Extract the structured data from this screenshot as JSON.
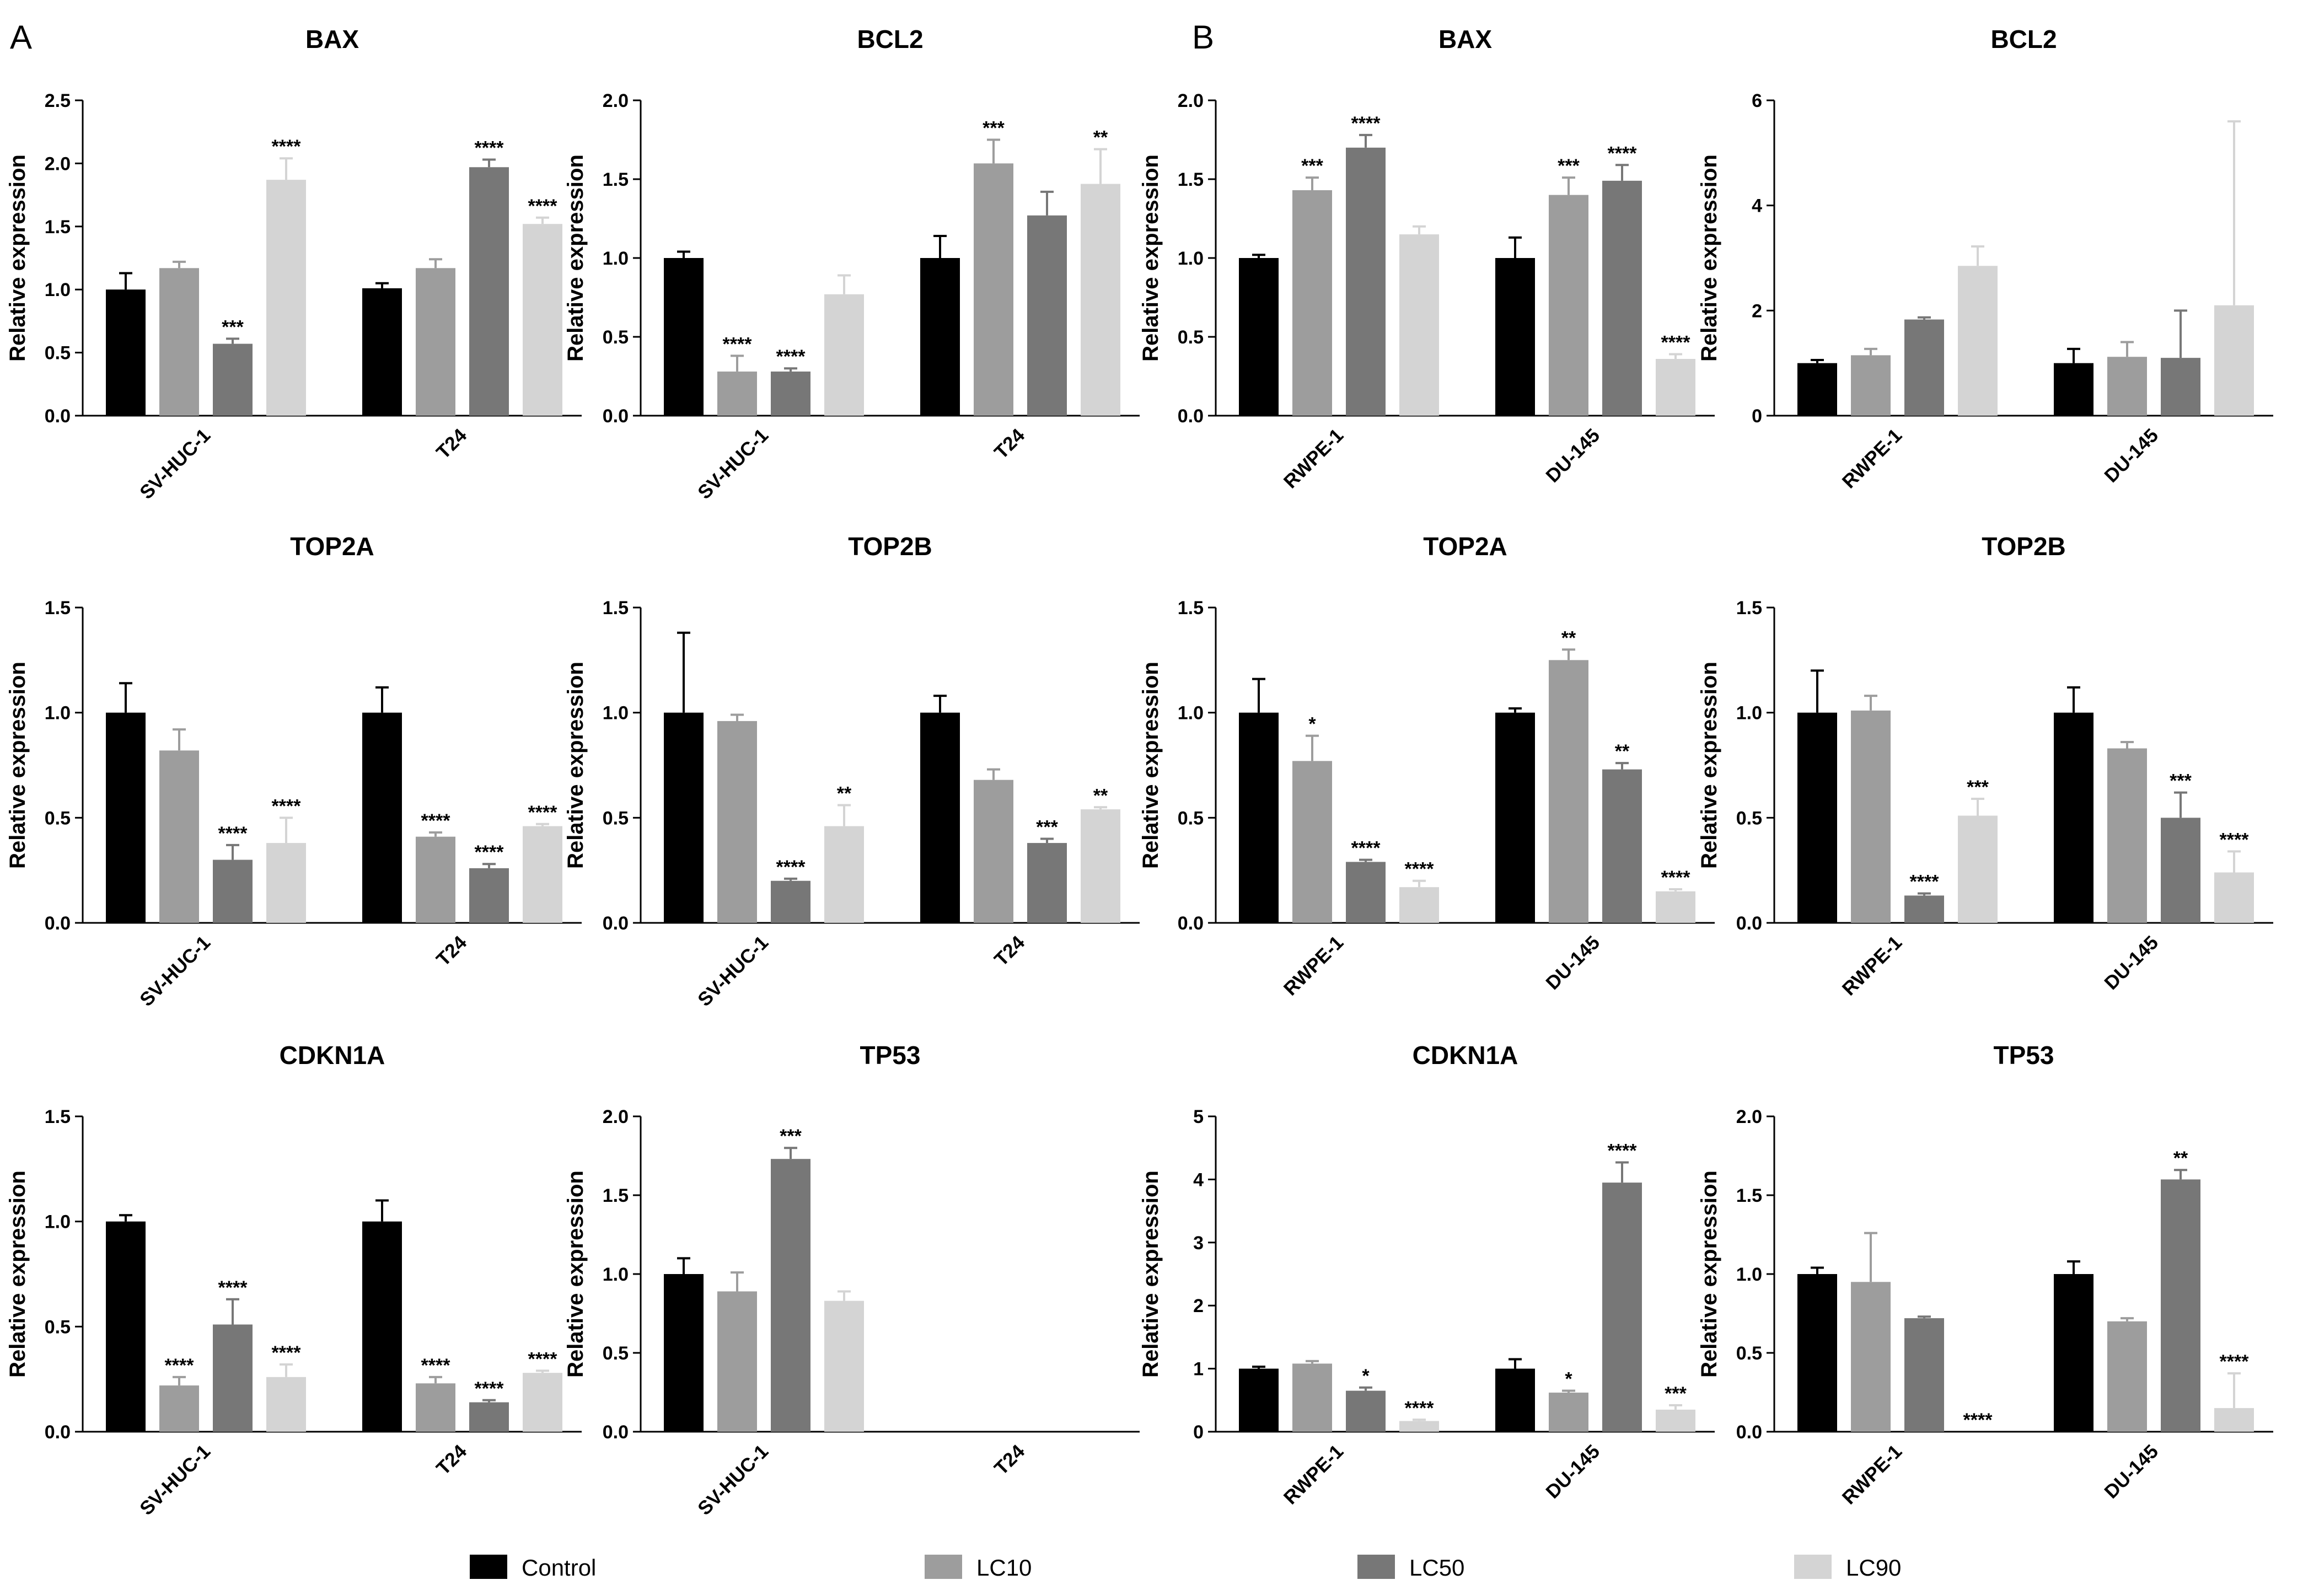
{
  "panel_labels": [
    "A",
    "B"
  ],
  "legend": [
    {
      "name": "Control",
      "color": "#000000"
    },
    {
      "name": "LC10",
      "color": "#9d9d9d"
    },
    {
      "name": "LC50",
      "color": "#777777"
    },
    {
      "name": "LC90",
      "color": "#d4d4d4"
    }
  ],
  "chart_data": [
    {
      "type": "bar",
      "panel": "A",
      "title": "BAX",
      "ylabel": "Relative expression",
      "ylim": [
        0,
        2.5
      ],
      "yticks": [
        "0.0",
        "0.5",
        "1.0",
        "1.5",
        "2.0",
        "2.5"
      ],
      "categories": [
        "SV-HUC-1",
        "T24"
      ],
      "series": [
        {
          "name": "Control",
          "values": [
            1.0,
            1.01
          ],
          "errors": [
            0.13,
            0.04
          ],
          "sig": [
            "",
            ""
          ]
        },
        {
          "name": "LC10",
          "values": [
            1.17,
            1.17
          ],
          "errors": [
            0.05,
            0.07
          ],
          "sig": [
            "",
            ""
          ]
        },
        {
          "name": "LC50",
          "values": [
            0.57,
            1.97
          ],
          "errors": [
            0.04,
            0.06
          ],
          "sig": [
            "***",
            "****"
          ]
        },
        {
          "name": "LC90",
          "values": [
            1.87,
            1.52
          ],
          "errors": [
            0.17,
            0.05
          ],
          "sig": [
            "****",
            "****"
          ]
        }
      ]
    },
    {
      "type": "bar",
      "panel": "A",
      "title": "BCL2",
      "ylabel": "Relative expression",
      "ylim": [
        0,
        2.0
      ],
      "yticks": [
        "0.0",
        "0.5",
        "1.0",
        "1.5",
        "2.0"
      ],
      "categories": [
        "SV-HUC-1",
        "T24"
      ],
      "series": [
        {
          "name": "Control",
          "values": [
            1.0,
            1.0
          ],
          "errors": [
            0.04,
            0.14
          ],
          "sig": [
            "",
            ""
          ]
        },
        {
          "name": "LC10",
          "values": [
            0.28,
            1.6
          ],
          "errors": [
            0.1,
            0.15
          ],
          "sig": [
            "****",
            "***"
          ]
        },
        {
          "name": "LC50",
          "values": [
            0.28,
            1.27
          ],
          "errors": [
            0.02,
            0.15
          ],
          "sig": [
            "****",
            ""
          ]
        },
        {
          "name": "LC90",
          "values": [
            0.77,
            1.47
          ],
          "errors": [
            0.12,
            0.22
          ],
          "sig": [
            "",
            "**"
          ]
        }
      ]
    },
    {
      "type": "bar",
      "panel": "B",
      "title": "BAX",
      "ylabel": "Relative expression",
      "ylim": [
        0,
        2.0
      ],
      "yticks": [
        "0.0",
        "0.5",
        "1.0",
        "1.5",
        "2.0"
      ],
      "categories": [
        "RWPE-1",
        "DU-145"
      ],
      "series": [
        {
          "name": "Control",
          "values": [
            1.0,
            1.0
          ],
          "errors": [
            0.02,
            0.13
          ],
          "sig": [
            "",
            ""
          ]
        },
        {
          "name": "LC10",
          "values": [
            1.43,
            1.4
          ],
          "errors": [
            0.08,
            0.11
          ],
          "sig": [
            "***",
            "***"
          ]
        },
        {
          "name": "LC50",
          "values": [
            1.7,
            1.49
          ],
          "errors": [
            0.08,
            0.1
          ],
          "sig": [
            "****",
            "****"
          ]
        },
        {
          "name": "LC90",
          "values": [
            1.15,
            0.36
          ],
          "errors": [
            0.05,
            0.03
          ],
          "sig": [
            "",
            "****"
          ]
        }
      ]
    },
    {
      "type": "bar",
      "panel": "B",
      "title": "BCL2",
      "ylabel": "Relative expression",
      "ylim": [
        0,
        6
      ],
      "yticks": [
        "0",
        "2",
        "4",
        "6"
      ],
      "categories": [
        "RWPE-1",
        "DU-145"
      ],
      "series": [
        {
          "name": "Control",
          "values": [
            1.0,
            1.0
          ],
          "errors": [
            0.06,
            0.27
          ],
          "sig": [
            "",
            ""
          ]
        },
        {
          "name": "LC10",
          "values": [
            1.15,
            1.12
          ],
          "errors": [
            0.12,
            0.28
          ],
          "sig": [
            "",
            ""
          ]
        },
        {
          "name": "LC50",
          "values": [
            1.83,
            1.1
          ],
          "errors": [
            0.04,
            0.9
          ],
          "sig": [
            "",
            ""
          ]
        },
        {
          "name": "LC90",
          "values": [
            2.85,
            2.1
          ],
          "errors": [
            0.37,
            3.5
          ],
          "sig": [
            "",
            ""
          ]
        }
      ]
    },
    {
      "type": "bar",
      "panel": "A",
      "title": "TOP2A",
      "ylabel": "Relative expression",
      "ylim": [
        0,
        1.5
      ],
      "yticks": [
        "0.0",
        "0.5",
        "1.0",
        "1.5"
      ],
      "categories": [
        "SV-HUC-1",
        "T24"
      ],
      "series": [
        {
          "name": "Control",
          "values": [
            1.0,
            1.0
          ],
          "errors": [
            0.14,
            0.12
          ],
          "sig": [
            "",
            ""
          ]
        },
        {
          "name": "LC10",
          "values": [
            0.82,
            0.41
          ],
          "errors": [
            0.1,
            0.02
          ],
          "sig": [
            "",
            "****"
          ]
        },
        {
          "name": "LC50",
          "values": [
            0.3,
            0.26
          ],
          "errors": [
            0.07,
            0.02
          ],
          "sig": [
            "****",
            "****"
          ]
        },
        {
          "name": "LC90",
          "values": [
            0.38,
            0.46
          ],
          "errors": [
            0.12,
            0.01
          ],
          "sig": [
            "****",
            "****"
          ]
        }
      ]
    },
    {
      "type": "bar",
      "panel": "A",
      "title": "TOP2B",
      "ylabel": "Relative expression",
      "ylim": [
        0,
        1.5
      ],
      "yticks": [
        "0.0",
        "0.5",
        "1.0",
        "1.5"
      ],
      "categories": [
        "SV-HUC-1",
        "T24"
      ],
      "series": [
        {
          "name": "Control",
          "values": [
            1.0,
            1.0
          ],
          "errors": [
            0.38,
            0.08
          ],
          "sig": [
            "",
            ""
          ]
        },
        {
          "name": "LC10",
          "values": [
            0.96,
            0.68
          ],
          "errors": [
            0.03,
            0.05
          ],
          "sig": [
            "",
            ""
          ]
        },
        {
          "name": "LC50",
          "values": [
            0.2,
            0.38
          ],
          "errors": [
            0.01,
            0.02
          ],
          "sig": [
            "****",
            "***"
          ]
        },
        {
          "name": "LC90",
          "values": [
            0.46,
            0.54
          ],
          "errors": [
            0.1,
            0.01
          ],
          "sig": [
            "**",
            "**"
          ]
        }
      ]
    },
    {
      "type": "bar",
      "panel": "B",
      "title": "TOP2A",
      "ylabel": "Relative expression",
      "ylim": [
        0,
        1.5
      ],
      "yticks": [
        "0.0",
        "0.5",
        "1.0",
        "1.5"
      ],
      "categories": [
        "RWPE-1",
        "DU-145"
      ],
      "series": [
        {
          "name": "Control",
          "values": [
            1.0,
            1.0
          ],
          "errors": [
            0.16,
            0.02
          ],
          "sig": [
            "",
            ""
          ]
        },
        {
          "name": "LC10",
          "values": [
            0.77,
            1.25
          ],
          "errors": [
            0.12,
            0.05
          ],
          "sig": [
            "*",
            "**"
          ]
        },
        {
          "name": "LC50",
          "values": [
            0.29,
            0.73
          ],
          "errors": [
            0.01,
            0.03
          ],
          "sig": [
            "****",
            "**"
          ]
        },
        {
          "name": "LC90",
          "values": [
            0.17,
            0.15
          ],
          "errors": [
            0.03,
            0.01
          ],
          "sig": [
            "****",
            "****"
          ]
        }
      ]
    },
    {
      "type": "bar",
      "panel": "B",
      "title": "TOP2B",
      "ylabel": "Relative expression",
      "ylim": [
        0,
        1.5
      ],
      "yticks": [
        "0.0",
        "0.5",
        "1.0",
        "1.5"
      ],
      "categories": [
        "RWPE-1",
        "DU-145"
      ],
      "series": [
        {
          "name": "Control",
          "values": [
            1.0,
            1.0
          ],
          "errors": [
            0.2,
            0.12
          ],
          "sig": [
            "",
            ""
          ]
        },
        {
          "name": "LC10",
          "values": [
            1.01,
            0.83
          ],
          "errors": [
            0.07,
            0.03
          ],
          "sig": [
            "",
            ""
          ]
        },
        {
          "name": "LC50",
          "values": [
            0.13,
            0.5
          ],
          "errors": [
            0.01,
            0.12
          ],
          "sig": [
            "****",
            "***"
          ]
        },
        {
          "name": "LC90",
          "values": [
            0.51,
            0.24
          ],
          "errors": [
            0.08,
            0.1
          ],
          "sig": [
            "***",
            "****"
          ]
        }
      ]
    },
    {
      "type": "bar",
      "panel": "A",
      "title": "CDKN1A",
      "ylabel": "Relative expression",
      "ylim": [
        0,
        1.5
      ],
      "yticks": [
        "0.0",
        "0.5",
        "1.0",
        "1.5"
      ],
      "categories": [
        "SV-HUC-1",
        "T24"
      ],
      "series": [
        {
          "name": "Control",
          "values": [
            1.0,
            1.0
          ],
          "errors": [
            0.03,
            0.1
          ],
          "sig": [
            "",
            ""
          ]
        },
        {
          "name": "LC10",
          "values": [
            0.22,
            0.23
          ],
          "errors": [
            0.04,
            0.03
          ],
          "sig": [
            "****",
            "****"
          ]
        },
        {
          "name": "LC50",
          "values": [
            0.51,
            0.14
          ],
          "errors": [
            0.12,
            0.01
          ],
          "sig": [
            "****",
            "****"
          ]
        },
        {
          "name": "LC90",
          "values": [
            0.26,
            0.28
          ],
          "errors": [
            0.06,
            0.01
          ],
          "sig": [
            "****",
            "****"
          ]
        }
      ]
    },
    {
      "type": "bar",
      "panel": "A",
      "title": "TP53",
      "ylabel": "Relative expression",
      "ylim": [
        0,
        2.0
      ],
      "yticks": [
        "0.0",
        "0.5",
        "1.0",
        "1.5",
        "2.0"
      ],
      "categories": [
        "SV-HUC-1",
        "T24"
      ],
      "series": [
        {
          "name": "Control",
          "values": [
            1.0,
            0
          ],
          "errors": [
            0.1,
            0
          ],
          "sig": [
            "",
            ""
          ]
        },
        {
          "name": "LC10",
          "values": [
            0.89,
            0
          ],
          "errors": [
            0.12,
            0
          ],
          "sig": [
            "",
            ""
          ]
        },
        {
          "name": "LC50",
          "values": [
            1.73,
            0
          ],
          "errors": [
            0.07,
            0
          ],
          "sig": [
            "***",
            ""
          ]
        },
        {
          "name": "LC90",
          "values": [
            0.83,
            0
          ],
          "errors": [
            0.06,
            0
          ],
          "sig": [
            "",
            ""
          ]
        }
      ]
    },
    {
      "type": "bar",
      "panel": "B",
      "title": "CDKN1A",
      "ylabel": "Relative expression",
      "ylim": [
        0,
        5
      ],
      "yticks": [
        "0",
        "1",
        "2",
        "3",
        "4",
        "5"
      ],
      "categories": [
        "RWPE-1",
        "DU-145"
      ],
      "series": [
        {
          "name": "Control",
          "values": [
            1.0,
            1.0
          ],
          "errors": [
            0.03,
            0.15
          ],
          "sig": [
            "",
            ""
          ]
        },
        {
          "name": "LC10",
          "values": [
            1.08,
            0.62
          ],
          "errors": [
            0.04,
            0.03
          ],
          "sig": [
            "",
            "*"
          ]
        },
        {
          "name": "LC50",
          "values": [
            0.65,
            3.95
          ],
          "errors": [
            0.05,
            0.32
          ],
          "sig": [
            "*",
            "****"
          ]
        },
        {
          "name": "LC90",
          "values": [
            0.17,
            0.35
          ],
          "errors": [
            0.02,
            0.07
          ],
          "sig": [
            "****",
            "***"
          ]
        }
      ]
    },
    {
      "type": "bar",
      "panel": "B",
      "title": "TP53",
      "ylabel": "Relative expression",
      "ylim": [
        0,
        2.0
      ],
      "yticks": [
        "0.0",
        "0.5",
        "1.0",
        "1.5",
        "2.0"
      ],
      "categories": [
        "RWPE-1",
        "DU-145"
      ],
      "series": [
        {
          "name": "Control",
          "values": [
            1.0,
            1.0
          ],
          "errors": [
            0.04,
            0.08
          ],
          "sig": [
            "",
            ""
          ]
        },
        {
          "name": "LC10",
          "values": [
            0.95,
            0.7
          ],
          "errors": [
            0.31,
            0.02
          ],
          "sig": [
            "",
            ""
          ]
        },
        {
          "name": "LC50",
          "values": [
            0.72,
            1.6
          ],
          "errors": [
            0.01,
            0.06
          ],
          "sig": [
            "",
            "**"
          ]
        },
        {
          "name": "LC90",
          "values": [
            0.0,
            0.15
          ],
          "errors": [
            0,
            0.22
          ],
          "sig": [
            "****",
            "****"
          ]
        }
      ]
    }
  ]
}
